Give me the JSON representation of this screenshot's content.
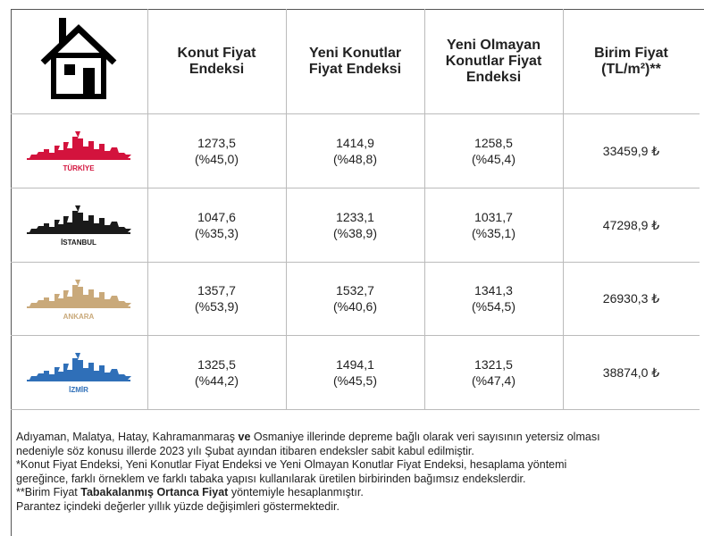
{
  "header": {
    "columns": [
      "Konut Fiyat Endeksi",
      "Yeni Konutlar Fiyat Endeksi",
      "Yeni Olmayan Konutlar Fiyat Endeksi",
      "Birim Fiyat (TL/m²)**"
    ]
  },
  "table": {
    "rows": [
      {
        "city": "TÜRKİYE",
        "color": "#d3133d",
        "cells": [
          [
            "1273,5",
            "(%45,0)"
          ],
          [
            "1414,9",
            "(%48,8)"
          ],
          [
            "1258,5",
            "(%45,4)"
          ],
          [
            "33459,9 ₺"
          ]
        ]
      },
      {
        "city": "İSTANBUL",
        "color": "#1a1a1a",
        "cells": [
          [
            "1047,6",
            "(%35,3)"
          ],
          [
            "1233,1",
            "(%38,9)"
          ],
          [
            "1031,7",
            "(%35,1)"
          ],
          [
            "47298,9 ₺"
          ]
        ]
      },
      {
        "city": "ANKARA",
        "color": "#c9a97a",
        "cells": [
          [
            "1357,7",
            "(%53,9)"
          ],
          [
            "1532,7",
            "(%40,6)"
          ],
          [
            "1341,3",
            "(%54,5)"
          ],
          [
            "26930,3 ₺"
          ]
        ]
      },
      {
        "city": "İZMİR",
        "color": "#2f6fb8",
        "cells": [
          [
            "1325,5",
            "(%44,2)"
          ],
          [
            "1494,1",
            "(%45,5)"
          ],
          [
            "1321,5",
            "(%47,4)"
          ],
          [
            "38874,0 ₺"
          ]
        ]
      }
    ]
  },
  "notes": {
    "lines": [
      [
        "Adıyaman, Malatya, Hatay, Kahramanmaraş ",
        "ve",
        " Osmaniye illerinde depreme bağlı olarak veri sayısının yetersiz olması"
      ],
      [
        "nedeniyle söz konusu illerde 2023 yılı Şubat ayından itibaren endeksler sabit kabul edilmiştir."
      ],
      [
        "*Konut Fiyat Endeksi, Yeni Konutlar Fiyat Endeksi ve Yeni Olmayan Konutlar Fiyat Endeksi, hesaplama yöntemi"
      ],
      [
        "gereğince, farklı örneklem ve farklı tabaka yapısı kullanılarak üretilen birbirinden bağımsız endekslerdir."
      ],
      [
        "**Birim Fiyat ",
        "Tabakalanmış Ortanca Fiyat",
        " yöntemiyle hesaplanmıştır."
      ],
      [
        "Parantez içindeki değerler yıllık yüzde değişimleri göstermektedir."
      ]
    ]
  }
}
